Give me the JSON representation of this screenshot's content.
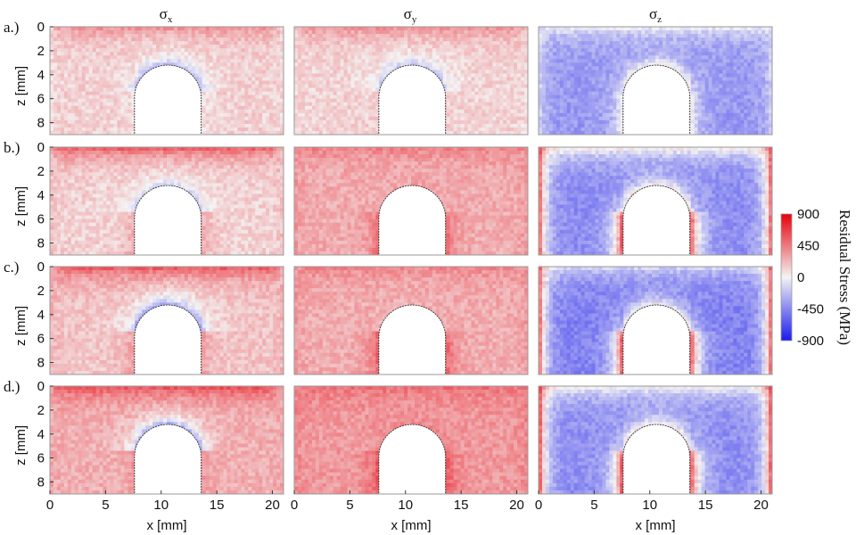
{
  "chart_data": {
    "type": "heatmap",
    "title": "",
    "panel_grid": {
      "rows": 4,
      "cols": 3
    },
    "column_titles": [
      {
        "base": "σ",
        "sub": "x"
      },
      {
        "base": "σ",
        "sub": "y"
      },
      {
        "base": "σ",
        "sub": "z"
      }
    ],
    "row_labels": [
      "a.)",
      "b.)",
      "c.)",
      "d.)"
    ],
    "xlabel": "x [mm]",
    "ylabel": "z [mm]",
    "xlim": [
      0,
      21
    ],
    "ylim": [
      0,
      9
    ],
    "x_ticks": [
      "0",
      "5",
      "10",
      "15",
      "20"
    ],
    "x_tick_values": [
      0,
      5,
      10,
      15,
      20
    ],
    "y_ticks": [
      "0",
      "2",
      "4",
      "6",
      "8"
    ],
    "y_tick_values": [
      0,
      2,
      4,
      6,
      8
    ],
    "y_inverted": true,
    "hole": {
      "x_left": 7.6,
      "x_right": 13.6,
      "z_top": 3.2,
      "z_shoulder": 5.9
    },
    "colorbar": {
      "label": "Residual Stress (MPa)",
      "ticks": [
        "900",
        "450",
        "0",
        "-450",
        "-900"
      ],
      "tick_values": [
        900,
        450,
        0,
        -450,
        -900
      ],
      "range": [
        -900,
        900
      ],
      "colors": {
        "high": "#e8000b",
        "mid": "#f4f4f4",
        "low": "#1a1aee"
      }
    },
    "panels": [
      {
        "row": 0,
        "col": 0,
        "component": "sigma_x",
        "top_band_MPa": 380,
        "bulk_MPa": 130,
        "hole_arc_MPa": -250,
        "hole_sides_MPa": 60,
        "side_walls_MPa": 100
      },
      {
        "row": 0,
        "col": 1,
        "component": "sigma_y",
        "top_band_MPa": 400,
        "bulk_MPa": 120,
        "hole_arc_MPa": -200,
        "hole_sides_MPa": 150,
        "side_walls_MPa": 100
      },
      {
        "row": 0,
        "col": 2,
        "component": "sigma_z",
        "top_band_MPa": 0,
        "bulk_MPa": -380,
        "hole_arc_MPa": 60,
        "hole_sides_MPa": 80,
        "side_walls_MPa": -100
      },
      {
        "row": 1,
        "col": 0,
        "component": "sigma_x",
        "top_band_MPa": 600,
        "bulk_MPa": 120,
        "hole_arc_MPa": -150,
        "hole_sides_MPa": 300,
        "side_walls_MPa": 200
      },
      {
        "row": 1,
        "col": 1,
        "component": "sigma_y",
        "top_band_MPa": 450,
        "bulk_MPa": 260,
        "hole_arc_MPa": 300,
        "hole_sides_MPa": 520,
        "side_walls_MPa": 350
      },
      {
        "row": 1,
        "col": 2,
        "component": "sigma_z",
        "top_band_MPa": 100,
        "bulk_MPa": -430,
        "hole_arc_MPa": 100,
        "hole_sides_MPa": 700,
        "side_walls_MPa": 700
      },
      {
        "row": 2,
        "col": 0,
        "component": "sigma_x",
        "top_band_MPa": 620,
        "bulk_MPa": 170,
        "hole_arc_MPa": -350,
        "hole_sides_MPa": 350,
        "side_walls_MPa": 250
      },
      {
        "row": 2,
        "col": 1,
        "component": "sigma_y",
        "top_band_MPa": 420,
        "bulk_MPa": 260,
        "hole_arc_MPa": 250,
        "hole_sides_MPa": 560,
        "side_walls_MPa": 350
      },
      {
        "row": 2,
        "col": 2,
        "component": "sigma_z",
        "top_band_MPa": -100,
        "bulk_MPa": -480,
        "hole_arc_MPa": 80,
        "hole_sides_MPa": 700,
        "side_walls_MPa": 700
      },
      {
        "row": 3,
        "col": 0,
        "component": "sigma_x",
        "top_band_MPa": 650,
        "bulk_MPa": 250,
        "hole_arc_MPa": -300,
        "hole_sides_MPa": 350,
        "side_walls_MPa": 280
      },
      {
        "row": 3,
        "col": 1,
        "component": "sigma_y",
        "top_band_MPa": 520,
        "bulk_MPa": 330,
        "hole_arc_MPa": 400,
        "hole_sides_MPa": 620,
        "side_walls_MPa": 420
      },
      {
        "row": 3,
        "col": 2,
        "component": "sigma_z",
        "top_band_MPa": 50,
        "bulk_MPa": -420,
        "hole_arc_MPa": 80,
        "hole_sides_MPa": 720,
        "side_walls_MPa": 760
      }
    ]
  }
}
